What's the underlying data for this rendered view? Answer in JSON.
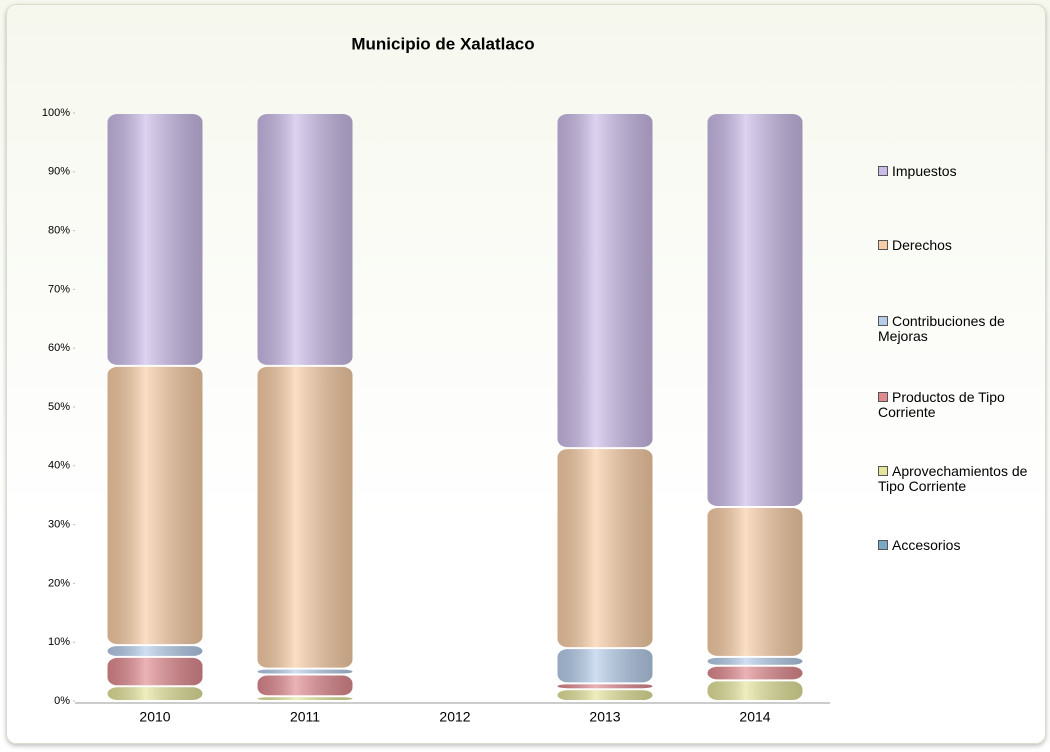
{
  "chart_data": {
    "type": "bar",
    "stacked": true,
    "title": "Municipio de Xalatlaco",
    "categories": [
      "2010",
      "2011",
      "2012",
      "2013",
      "2014"
    ],
    "series": [
      {
        "name": "Accesorios",
        "color": "#7aa8c4",
        "values": [
          0,
          0,
          null,
          0,
          0
        ]
      },
      {
        "name": "Aprovechamientos de Tipo Corriente",
        "color": "#e4e49c",
        "values": [
          2.5,
          0.8,
          null,
          2,
          3.5
        ]
      },
      {
        "name": "Productos de Tipo Corriente",
        "color": "#e08a90",
        "values": [
          5,
          3.7,
          null,
          1,
          2.5
        ]
      },
      {
        "name": "Contribuciones de Mejoras",
        "color": "#b6cdea",
        "values": [
          2,
          1,
          null,
          6,
          1.5
        ]
      },
      {
        "name": "Derechos",
        "color": "#f8cda6",
        "values": [
          47.5,
          51.5,
          null,
          34,
          25.5
        ]
      },
      {
        "name": "Impuestos",
        "color": "#cbbbe8",
        "values": [
          43,
          43,
          null,
          57,
          67
        ]
      }
    ],
    "ylim": [
      0,
      100
    ],
    "yticks": [
      {
        "value": 0,
        "label": "0%"
      },
      {
        "value": 10,
        "label": "10%"
      },
      {
        "value": 20,
        "label": "20%"
      },
      {
        "value": 30,
        "label": "30%"
      },
      {
        "value": 40,
        "label": "40%"
      },
      {
        "value": 50,
        "label": "50%"
      },
      {
        "value": 60,
        "label": "60%"
      },
      {
        "value": 70,
        "label": "70%"
      },
      {
        "value": 80,
        "label": "80%"
      },
      {
        "value": 90,
        "label": "90%"
      },
      {
        "value": 100,
        "label": "100%"
      }
    ],
    "grid": false,
    "legend": "right"
  }
}
